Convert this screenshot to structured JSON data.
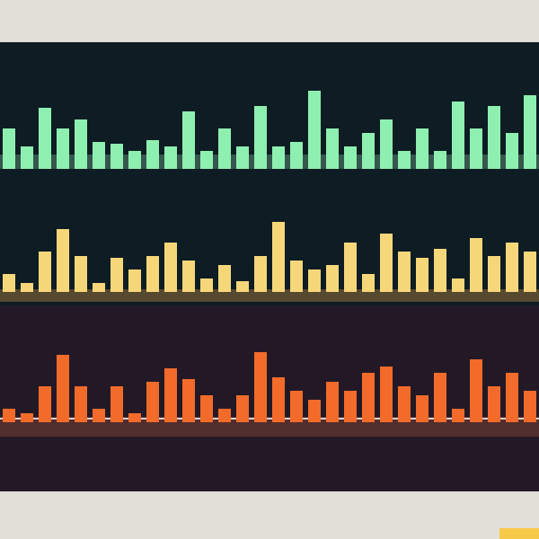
{
  "chart_data": [
    {
      "type": "bar",
      "color": "#8ef0b0",
      "ylim": [
        0,
        100
      ],
      "values": [
        45,
        25,
        68,
        45,
        55,
        30,
        28,
        20,
        32,
        25,
        64,
        20,
        45,
        25,
        70,
        25,
        30,
        87,
        45,
        25,
        40,
        55,
        20,
        45,
        20,
        75,
        45,
        70,
        40,
        82
      ]
    },
    {
      "type": "bar",
      "color": "#f5d77a",
      "ylim": [
        0,
        100
      ],
      "values": [
        20,
        10,
        45,
        70,
        40,
        10,
        38,
        25,
        40,
        55,
        35,
        15,
        30,
        12,
        40,
        78,
        35,
        25,
        30,
        55,
        20,
        65,
        45,
        38,
        48,
        15,
        60,
        40,
        55,
        45
      ]
    },
    {
      "type": "bar",
      "color": "#f26b2a",
      "ylim": [
        0,
        100
      ],
      "values": [
        15,
        10,
        40,
        75,
        40,
        15,
        40,
        10,
        45,
        60,
        48,
        30,
        15,
        30,
        78,
        50,
        35,
        25,
        45,
        35,
        55,
        62,
        40,
        30,
        55,
        15,
        70,
        40,
        55,
        35
      ]
    }
  ]
}
